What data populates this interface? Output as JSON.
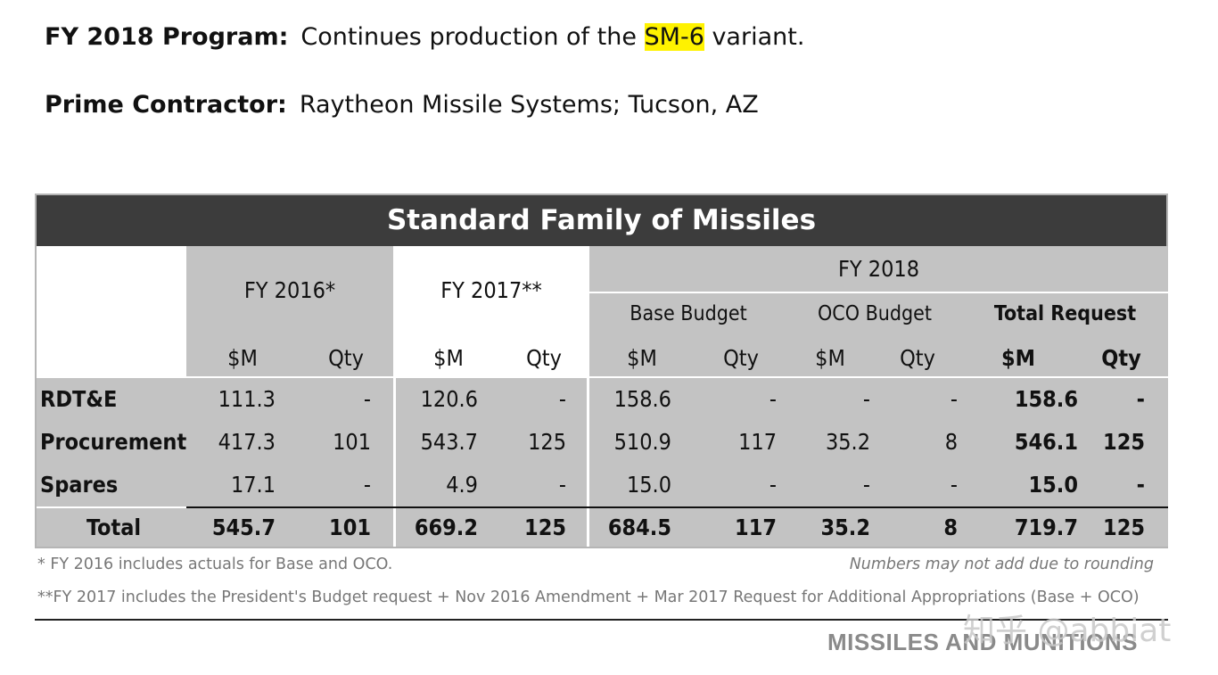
{
  "program": {
    "label": "FY 2018 Program:",
    "text_before": "Continues production of the ",
    "highlight": "SM-6",
    "text_after": " variant."
  },
  "contractor": {
    "label": "Prime Contractor:",
    "value": "Raytheon Missile Systems; Tucson, AZ"
  },
  "table": {
    "title": "Standard Family of Missiles",
    "fy2016": "FY 2016*",
    "fy2017": "FY 2017**",
    "fy2018": "FY 2018",
    "base": "Base Budget",
    "oco": "OCO Budget",
    "total_request": "Total Request",
    "sm": "$M",
    "qty": "Qty",
    "rows": [
      {
        "label": "RDT&E",
        "v": [
          "111.3",
          "-",
          "120.6",
          "-",
          "158.6",
          "-",
          "-",
          "-",
          "158.6",
          "-"
        ]
      },
      {
        "label": "Procurement",
        "v": [
          "417.3",
          "101",
          "543.7",
          "125",
          "510.9",
          "117",
          "35.2",
          "8",
          "546.1",
          "125"
        ]
      },
      {
        "label": "Spares",
        "v": [
          "17.1",
          "-",
          "4.9",
          "-",
          "15.0",
          "-",
          "-",
          "-",
          "15.0",
          "-"
        ]
      },
      {
        "label": "Total",
        "v": [
          "545.7",
          "101",
          "669.2",
          "125",
          "684.5",
          "117",
          "35.2",
          "8",
          "719.7",
          "125"
        ]
      }
    ]
  },
  "notes": {
    "n1": "* FY 2016 includes actuals for Base and OCO.",
    "n2": "Numbers may not add due to rounding",
    "n3": "**FY 2017 includes the President's Budget request + Nov 2016 Amendment + Mar 2017 Request for Additional Appropriations (Base + OCO)"
  },
  "footer": "MISSILES AND MUNITIONS",
  "watermark": "知乎 @abbiat"
}
